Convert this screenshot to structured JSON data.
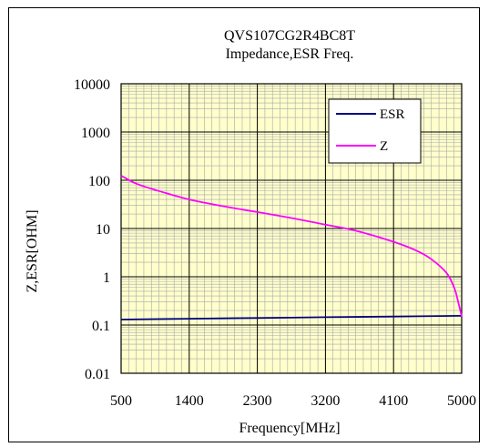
{
  "chart_data": {
    "type": "line",
    "title": "QVS107CG2R4BC8T",
    "subtitle": "Impedance,ESR Freq.",
    "xlabel": "Frequency[MHz]",
    "ylabel": "Z,ESR[OHM]",
    "x_ticks": [
      "500",
      "1400",
      "2300",
      "3200",
      "4100",
      "5000"
    ],
    "y_ticks": [
      "0.01",
      "0.1",
      "1",
      "10",
      "100",
      "1000",
      "10000"
    ],
    "xlim": [
      500,
      5000
    ],
    "ylim": [
      0.01,
      10000
    ],
    "y_scale": "log",
    "grid": true,
    "legend_position": "top-right",
    "series": [
      {
        "name": "ESR",
        "color": "#000080",
        "x": [
          500,
          1400,
          2300,
          3200,
          4100,
          5000
        ],
        "y": [
          0.13,
          0.135,
          0.14,
          0.145,
          0.15,
          0.155
        ]
      },
      {
        "name": "Z",
        "color": "#ff00ff",
        "x": [
          500,
          700,
          1000,
          1400,
          1900,
          2300,
          2800,
          3200,
          3600,
          4100,
          4400,
          4600,
          4800,
          4900,
          4950,
          5000
        ],
        "y": [
          125,
          85,
          60,
          40,
          28,
          22,
          16,
          12,
          9,
          5.3,
          3.5,
          2.3,
          1.2,
          0.6,
          0.32,
          0.15
        ]
      }
    ]
  }
}
